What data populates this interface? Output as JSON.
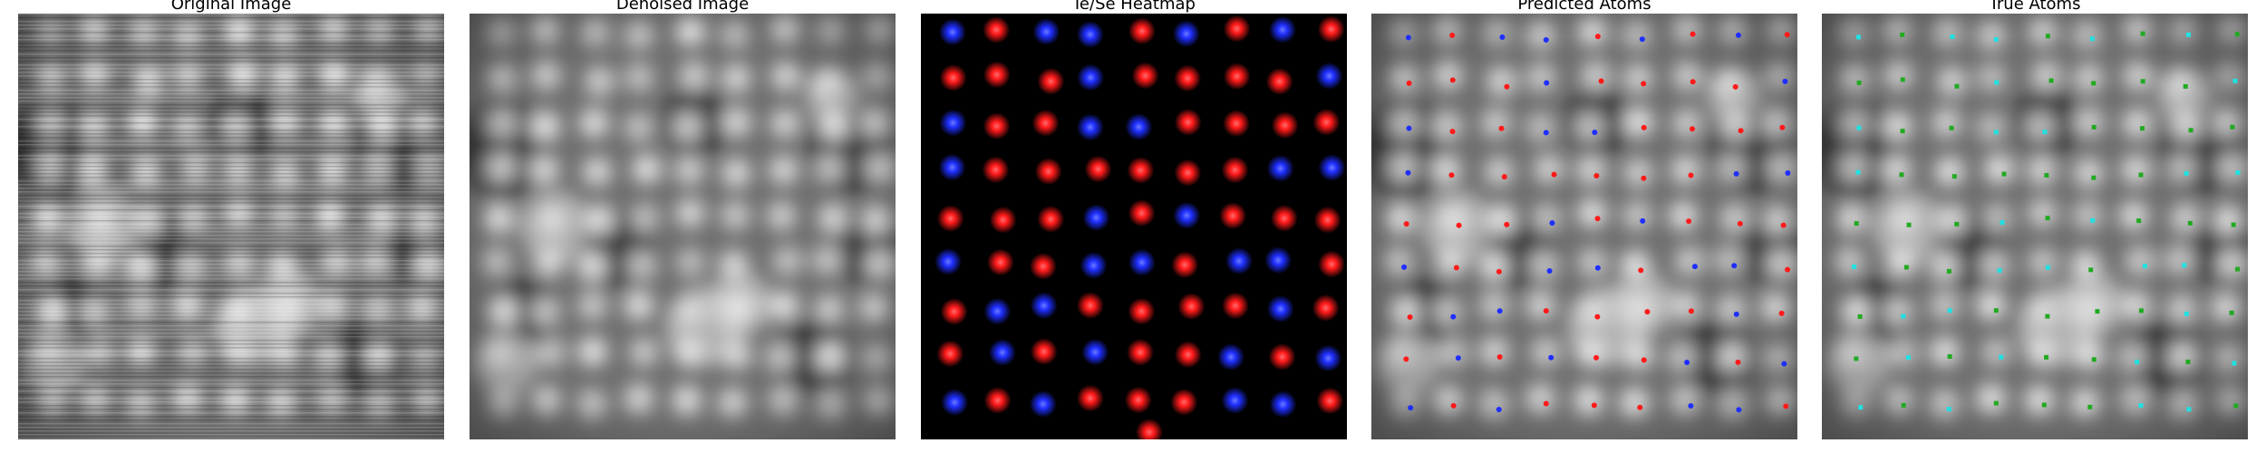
{
  "panels": [
    {
      "id": "original",
      "title": "Original Image"
    },
    {
      "id": "denoised",
      "title": "Denoised Image"
    },
    {
      "id": "heatmap",
      "title": "Te/Se Heatmap"
    },
    {
      "id": "predicted",
      "title": "Predicted Atoms"
    },
    {
      "id": "true",
      "title": "True Atoms"
    }
  ],
  "colors": {
    "te": "#ff1a1a",
    "se": "#1f2fff",
    "true_te": "#22aa22",
    "true_se": "#22e0e0",
    "heat_bg": "#000000"
  },
  "lattice": {
    "rows": 9,
    "cols": 9,
    "labels": [
      [
        "se",
        "te",
        "se",
        "se",
        "te",
        "se",
        "te",
        "se",
        "te"
      ],
      [
        "te",
        "te",
        "te",
        "se",
        "te",
        "te",
        "te",
        "te",
        "se"
      ],
      [
        "se",
        "te",
        "te",
        "se",
        "se",
        "te",
        "te",
        "te",
        "te"
      ],
      [
        "se",
        "te",
        "te",
        "te",
        "te",
        "te",
        "te",
        "se",
        "se"
      ],
      [
        "te",
        "te",
        "te",
        "se",
        "te",
        "se",
        "te",
        "te",
        "te"
      ],
      [
        "se",
        "te",
        "te",
        "se",
        "se",
        "te",
        "se",
        "se",
        "te"
      ],
      [
        "te",
        "se",
        "se",
        "te",
        "te",
        "te",
        "te",
        "se",
        "te"
      ],
      [
        "te",
        "se",
        "te",
        "se",
        "te",
        "te",
        "se",
        "te",
        "se"
      ],
      [
        "se",
        "te",
        "se",
        "te",
        "te",
        "te",
        "se",
        "se",
        "te"
      ]
    ]
  }
}
